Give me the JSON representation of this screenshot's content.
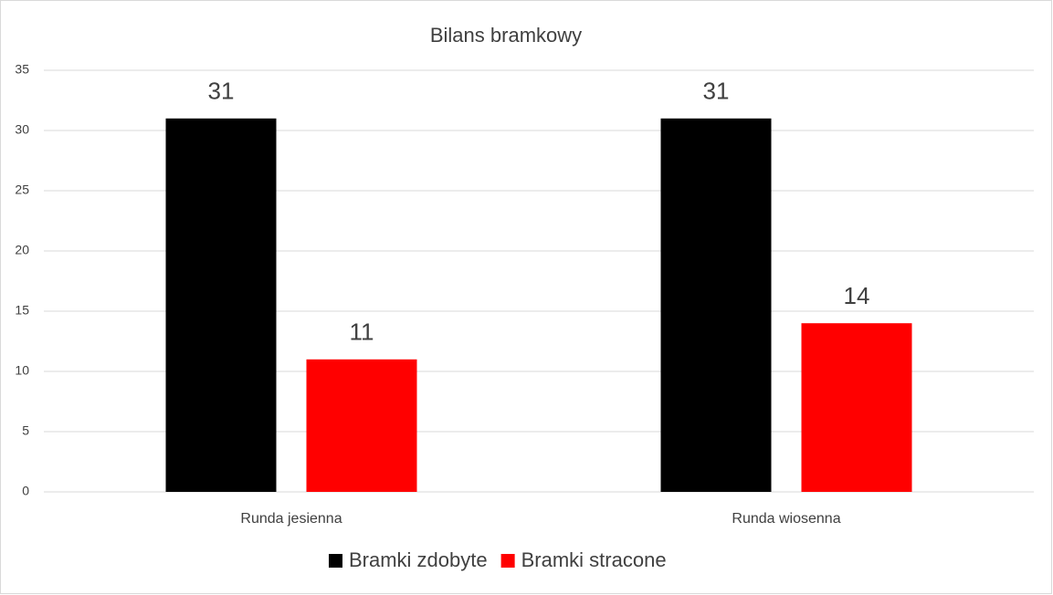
{
  "chart_data": {
    "type": "bar",
    "title": "Bilans bramkowy",
    "categories": [
      "Runda jesienna",
      "Runda wiosenna"
    ],
    "series": [
      {
        "name": "Bramki zdobyte",
        "color": "#000000",
        "values": [
          31,
          31
        ]
      },
      {
        "name": "Bramki stracone",
        "color": "#ff0000",
        "values": [
          11,
          14
        ]
      }
    ],
    "ylim": [
      0,
      35
    ],
    "yticks": [
      0,
      5,
      10,
      15,
      20,
      25,
      30,
      35
    ],
    "grid": true,
    "legend": "bottom"
  }
}
